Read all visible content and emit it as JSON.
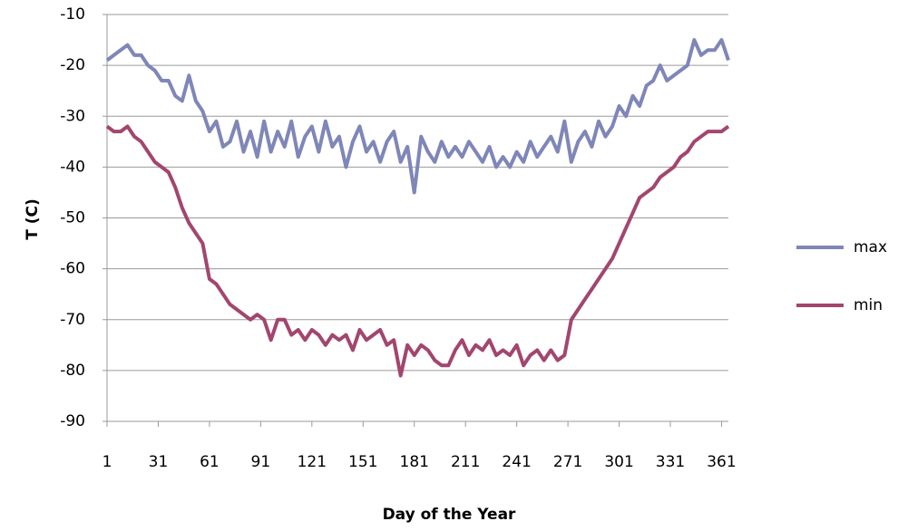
{
  "chart_data": {
    "type": "line",
    "x_label": "Day of the Year",
    "y_label": "T (C)",
    "x": [
      1,
      5,
      9,
      13,
      17,
      21,
      25,
      29,
      33,
      37,
      41,
      45,
      49,
      53,
      57,
      61,
      65,
      69,
      73,
      77,
      81,
      85,
      89,
      93,
      97,
      101,
      105,
      109,
      113,
      117,
      121,
      125,
      129,
      133,
      137,
      141,
      145,
      149,
      153,
      157,
      161,
      165,
      169,
      173,
      177,
      181,
      185,
      189,
      193,
      197,
      201,
      205,
      209,
      213,
      217,
      221,
      225,
      229,
      233,
      237,
      241,
      245,
      249,
      253,
      257,
      261,
      265,
      269,
      273,
      277,
      281,
      285,
      289,
      293,
      297,
      301,
      305,
      309,
      313,
      317,
      321,
      325,
      329,
      333,
      337,
      341,
      345,
      349,
      353,
      357,
      361,
      365
    ],
    "series": [
      {
        "name": "max",
        "color": "#7f86b8",
        "values": [
          -19,
          -18,
          -17,
          -16,
          -18,
          -18,
          -20,
          -21,
          -23,
          -23,
          -26,
          -27,
          -22,
          -27,
          -29,
          -33,
          -31,
          -36,
          -35,
          -31,
          -37,
          -33,
          -38,
          -31,
          -37,
          -33,
          -36,
          -31,
          -38,
          -34,
          -32,
          -37,
          -31,
          -36,
          -34,
          -40,
          -35,
          -32,
          -37,
          -35,
          -39,
          -35,
          -33,
          -39,
          -36,
          -45,
          -34,
          -37,
          -39,
          -35,
          -38,
          -36,
          -38,
          -35,
          -37,
          -39,
          -36,
          -40,
          -38,
          -40,
          -37,
          -39,
          -35,
          -38,
          -36,
          -34,
          -37,
          -31,
          -39,
          -35,
          -33,
          -36,
          -31,
          -34,
          -32,
          -28,
          -30,
          -26,
          -28,
          -24,
          -23,
          -20,
          -23,
          -22,
          -21,
          -20,
          -15,
          -18,
          -17,
          -17,
          -15,
          -19
        ]
      },
      {
        "name": "min",
        "color": "#a2466f",
        "values": [
          -32,
          -33,
          -33,
          -32,
          -34,
          -35,
          -37,
          -39,
          -40,
          -41,
          -44,
          -48,
          -51,
          -53,
          -55,
          -62,
          -63,
          -65,
          -67,
          -68,
          -69,
          -70,
          -69,
          -70,
          -74,
          -70,
          -70,
          -73,
          -72,
          -74,
          -72,
          -73,
          -75,
          -73,
          -74,
          -73,
          -76,
          -72,
          -74,
          -73,
          -72,
          -75,
          -74,
          -81,
          -75,
          -77,
          -75,
          -76,
          -78,
          -79,
          -79,
          -76,
          -74,
          -77,
          -75,
          -76,
          -74,
          -77,
          -76,
          -77,
          -75,
          -79,
          -77,
          -76,
          -78,
          -76,
          -78,
          -77,
          -70,
          -68,
          -66,
          -64,
          -62,
          -60,
          -58,
          -55,
          -52,
          -49,
          -46,
          -45,
          -44,
          -42,
          -41,
          -40,
          -38,
          -37,
          -35,
          -34,
          -33,
          -33,
          -33,
          -32
        ]
      }
    ],
    "xlim": [
      1,
      365
    ],
    "xticks": [
      1,
      31,
      61,
      91,
      121,
      151,
      181,
      211,
      241,
      271,
      301,
      331,
      361
    ],
    "ylim": [
      -90,
      -10
    ],
    "yticks": [
      -90,
      -80,
      -70,
      -60,
      -50,
      -40,
      -30,
      -20,
      -10
    ],
    "grid": true,
    "legend": "right"
  }
}
